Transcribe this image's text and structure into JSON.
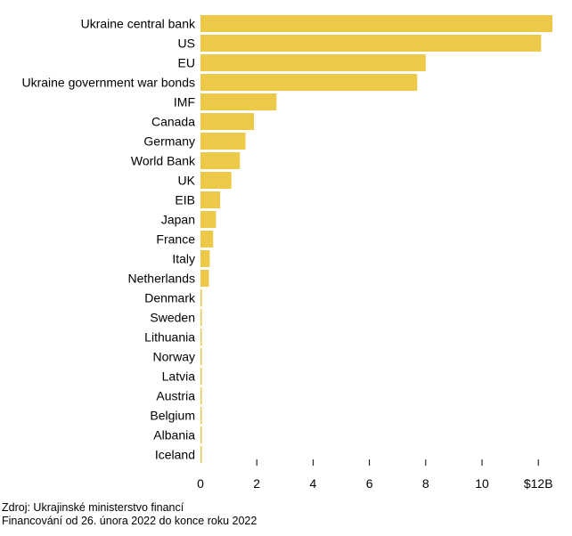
{
  "chart_data": {
    "type": "bar",
    "orientation": "horizontal",
    "categories": [
      "Ukraine central bank",
      "US",
      "EU",
      "Ukraine government war bonds",
      "IMF",
      "Canada",
      "Germany",
      "World Bank",
      "UK",
      "EIB",
      "Japan",
      "France",
      "Italy",
      "Netherlands",
      "Denmark",
      "Sweden",
      "Lithuania",
      "Norway",
      "Latvia",
      "Austria",
      "Belgium",
      "Albania",
      "Iceland"
    ],
    "values": [
      12.5,
      12.1,
      8.0,
      7.7,
      2.7,
      1.9,
      1.6,
      1.4,
      1.1,
      0.7,
      0.55,
      0.45,
      0.33,
      0.3,
      0.05,
      0.04,
      0.04,
      0.03,
      0.03,
      0.03,
      0.02,
      0.02,
      0.01
    ],
    "xlim": [
      0,
      12.6
    ],
    "xticks": [
      0,
      2,
      4,
      6,
      8,
      10,
      12
    ],
    "xtick_labels": [
      "0",
      "2",
      "4",
      "6",
      "8",
      "10",
      "$12B"
    ],
    "bar_color": "#edc949",
    "grid": false,
    "title": "",
    "xlabel": "",
    "ylabel": ""
  },
  "footer": {
    "source": "Zdroj: Ukrajinské ministerstvo financí",
    "note": "Financování od 26. února 2022 do konce roku 2022"
  }
}
